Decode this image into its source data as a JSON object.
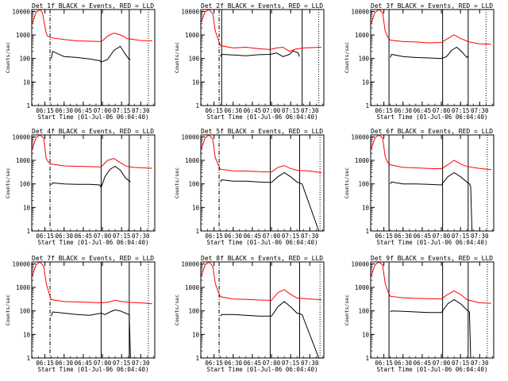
{
  "figure": {
    "background": "#ffffff",
    "axis_color": "#000000",
    "events_color": "#000000",
    "lld_color": "#ff0000"
  },
  "chart_data": [
    {
      "type": "line",
      "title": "Det 1f BLACK = Events, RED = LLD",
      "xlabel": "Start Time (01-Jul-06 06:04:40)",
      "ylabel": "Counts/sec",
      "yscale": "log",
      "ylim": [
        1,
        12000
      ],
      "y_ticks": [
        1,
        10,
        100,
        1000,
        10000
      ],
      "x_ticks": [
        "06:15",
        "06:30",
        "06:45",
        "07:00",
        "07:15",
        "07:30"
      ],
      "series": [
        {
          "role": "lld",
          "color": "#ff0000",
          "x": [
            "06:05",
            "06:08",
            "06:11",
            "06:13",
            "06:16",
            "06:17",
            "06:20",
            "06:30",
            "06:40",
            "06:50",
            "06:59",
            "07:00",
            "07:04",
            "07:09",
            "07:14",
            "07:18",
            "07:19",
            "07:30",
            "07:39"
          ],
          "y": [
            3000,
            9000,
            12000,
            9000,
            1200,
            900,
            750,
            640,
            560,
            540,
            520,
            560,
            900,
            1200,
            1000,
            800,
            700,
            580,
            560
          ]
        },
        {
          "role": "events",
          "color": "#000000",
          "x": [
            "06:20",
            "06:21",
            "06:30",
            "06:40",
            "06:50",
            "06:58",
            "06:59",
            "07:04",
            "07:09",
            "07:14",
            "07:17",
            "07:21",
            "07:22"
          ],
          "y": [
            100,
            200,
            120,
            110,
            95,
            80,
            70,
            90,
            220,
            330,
            180,
            90,
            95
          ]
        }
      ],
      "markers_solid": [
        "06:59",
        "07:21"
      ],
      "markers_dashed": [
        "06:19"
      ],
      "markers_dotted": [
        "07:36"
      ]
    },
    {
      "type": "line",
      "title": "Det 2f BLACK = Events, RED = LLD",
      "xlabel": "Start Time (01-Jul-06 06:04:40)",
      "ylabel": "Counts/sec",
      "yscale": "log",
      "ylim": [
        1,
        12000
      ],
      "y_ticks": [
        1,
        10,
        100,
        1000,
        10000
      ],
      "x_ticks": [
        "06:15",
        "06:30",
        "06:45",
        "07:00",
        "07:15",
        "07:30"
      ],
      "series": [
        {
          "role": "lld",
          "color": "#ff0000",
          "x": [
            "06:05",
            "06:08",
            "06:11",
            "06:14",
            "06:16",
            "06:18",
            "06:20",
            "06:30",
            "06:40",
            "06:50",
            "06:59",
            "07:04",
            "07:09",
            "07:14",
            "07:19",
            "07:25",
            "07:39"
          ],
          "y": [
            3500,
            9500,
            12000,
            8000,
            1500,
            700,
            350,
            280,
            300,
            260,
            240,
            280,
            300,
            200,
            250,
            280,
            300
          ]
        },
        {
          "role": "events",
          "color": "#000000",
          "x": [
            "06:20",
            "06:21",
            "06:30",
            "06:40",
            "06:50",
            "06:59",
            "07:04",
            "07:09",
            "07:14",
            "07:17",
            "07:21",
            "07:22"
          ],
          "y": [
            120,
            150,
            140,
            130,
            145,
            150,
            170,
            120,
            150,
            210,
            170,
            120
          ]
        }
      ],
      "markers_solid": [
        "06:21",
        "06:59",
        "07:24"
      ],
      "markers_dashed": [
        "06:19"
      ],
      "markers_dotted": [
        "07:37"
      ]
    },
    {
      "type": "line",
      "title": "Det 3f BLACK = Events, RED = LLD",
      "xlabel": "Start Time (01-Jul-06 06:04:40)",
      "ylabel": "Counts/sec",
      "yscale": "log",
      "ylim": [
        1,
        12000
      ],
      "y_ticks": [
        1,
        10,
        100,
        1000,
        10000
      ],
      "x_ticks": [
        "06:15",
        "06:30",
        "06:45",
        "07:00",
        "07:15",
        "07:30"
      ],
      "series": [
        {
          "role": "lld",
          "color": "#ff0000",
          "x": [
            "06:05",
            "06:08",
            "06:11",
            "06:14",
            "06:16",
            "06:18",
            "06:20",
            "06:30",
            "06:40",
            "06:50",
            "07:00",
            "07:05",
            "07:10",
            "07:15",
            "07:22",
            "07:30",
            "07:39"
          ],
          "y": [
            3000,
            9000,
            12000,
            9000,
            1500,
            800,
            600,
            520,
            500,
            460,
            480,
            700,
            1000,
            700,
            500,
            420,
            400
          ]
        },
        {
          "role": "events",
          "color": "#000000",
          "x": [
            "06:20",
            "06:21",
            "06:30",
            "06:40",
            "06:50",
            "07:00",
            "07:04",
            "07:08",
            "07:12",
            "07:15",
            "07:20",
            "07:21"
          ],
          "y": [
            110,
            150,
            120,
            110,
            105,
            100,
            120,
            220,
            300,
            220,
            110,
            130
          ]
        }
      ],
      "markers_solid": [
        "06:19",
        "07:01",
        "07:21"
      ],
      "markers_dashed": [],
      "markers_dotted": [
        "07:35"
      ]
    },
    {
      "type": "line",
      "title": "Det 4f BLACK = Events, RED = LLD",
      "xlabel": "Start Time (01-Jul-06 06:04:40)",
      "ylabel": "Counts/sec",
      "yscale": "log",
      "ylim": [
        1,
        12000
      ],
      "y_ticks": [
        1,
        10,
        100,
        1000,
        10000
      ],
      "x_ticks": [
        "06:15",
        "06:30",
        "06:45",
        "07:00",
        "07:15",
        "07:30"
      ],
      "series": [
        {
          "role": "lld",
          "color": "#ff0000",
          "x": [
            "06:05",
            "06:08",
            "06:11",
            "06:14",
            "06:16",
            "06:18",
            "06:20",
            "06:30",
            "06:40",
            "06:50",
            "06:59",
            "07:00",
            "07:04",
            "07:09",
            "07:14",
            "07:19",
            "07:25",
            "07:39"
          ],
          "y": [
            3000,
            9000,
            12000,
            9000,
            1200,
            800,
            700,
            580,
            560,
            540,
            520,
            600,
            1000,
            1200,
            800,
            550,
            500,
            460
          ]
        },
        {
          "role": "events",
          "color": "#000000",
          "x": [
            "06:20",
            "06:21",
            "06:30",
            "06:40",
            "06:50",
            "06:58",
            "06:59",
            "07:02",
            "07:06",
            "07:10",
            "07:14",
            "07:18",
            "07:22"
          ],
          "y": [
            90,
            110,
            100,
            95,
            95,
            90,
            70,
            200,
            420,
            560,
            380,
            180,
            120
          ]
        }
      ],
      "markers_solid": [
        "06:59",
        "07:21"
      ],
      "markers_dashed": [
        "06:19"
      ],
      "markers_dotted": [
        "07:36"
      ]
    },
    {
      "type": "line",
      "title": "Det 5f BLACK = Events, RED = LLD",
      "xlabel": "Start Time (01-Jul-06 06:04:40)",
      "ylabel": "Counts/sec",
      "yscale": "log",
      "ylim": [
        1,
        12000
      ],
      "y_ticks": [
        1,
        10,
        100,
        1000,
        10000
      ],
      "x_ticks": [
        "06:15",
        "06:30",
        "06:45",
        "07:00",
        "07:15",
        "07:30"
      ],
      "series": [
        {
          "role": "lld",
          "color": "#ff0000",
          "x": [
            "06:05",
            "06:08",
            "06:11",
            "06:14",
            "06:16",
            "06:18",
            "06:20",
            "06:30",
            "06:40",
            "06:50",
            "07:00",
            "07:05",
            "07:10",
            "07:15",
            "07:20",
            "07:30",
            "07:39"
          ],
          "y": [
            3000,
            9000,
            12000,
            8000,
            1300,
            700,
            420,
            360,
            350,
            330,
            320,
            500,
            600,
            450,
            380,
            350,
            300
          ]
        },
        {
          "role": "events",
          "color": "#000000",
          "x": [
            "06:20",
            "06:21",
            "06:30",
            "06:40",
            "06:50",
            "07:00",
            "07:05",
            "07:10",
            "07:15",
            "07:20",
            "07:24",
            "07:37",
            "07:38"
          ],
          "y": [
            120,
            150,
            130,
            130,
            120,
            115,
            200,
            300,
            200,
            120,
            100,
            1,
            1
          ]
        }
      ],
      "markers_solid": [
        "06:59",
        "07:22"
      ],
      "markers_dashed": [
        "06:19"
      ],
      "markers_dotted": [
        "07:38"
      ]
    },
    {
      "type": "line",
      "title": "Det 6f BLACK = Events, RED = LLD",
      "xlabel": "Start Time (01-Jul-06 06:04:40)",
      "ylabel": "Counts/sec",
      "yscale": "log",
      "ylim": [
        1,
        12000
      ],
      "y_ticks": [
        1,
        10,
        100,
        1000,
        10000
      ],
      "x_ticks": [
        "06:15",
        "06:30",
        "06:45",
        "07:00",
        "07:15",
        "07:30"
      ],
      "series": [
        {
          "role": "lld",
          "color": "#ff0000",
          "x": [
            "06:05",
            "06:08",
            "06:11",
            "06:14",
            "06:16",
            "06:18",
            "06:20",
            "06:30",
            "06:40",
            "06:50",
            "07:00",
            "07:05",
            "07:10",
            "07:15",
            "07:20",
            "07:30",
            "07:39"
          ],
          "y": [
            3000,
            9000,
            12000,
            9000,
            1500,
            800,
            650,
            500,
            480,
            450,
            440,
            650,
            1000,
            700,
            550,
            450,
            400
          ]
        },
        {
          "role": "events",
          "color": "#000000",
          "x": [
            "06:20",
            "06:21",
            "06:30",
            "06:40",
            "06:50",
            "07:00",
            "07:05",
            "07:10",
            "07:15",
            "07:20",
            "07:22",
            "07:23",
            "07:24",
            "07:25"
          ],
          "y": [
            100,
            120,
            100,
            100,
            95,
            90,
            200,
            300,
            200,
            120,
            100,
            80,
            1,
            1
          ]
        }
      ],
      "markers_solid": [
        "06:19",
        "07:01",
        "07:21"
      ],
      "markers_dashed": [],
      "markers_dotted": [
        "07:36"
      ]
    },
    {
      "type": "line",
      "title": "Det 7f BLACK = Events, RED = LLD",
      "xlabel": "Start Time (01-Jul-06 06:04:40)",
      "ylabel": "Counts/sec",
      "yscale": "log",
      "ylim": [
        1,
        12000
      ],
      "y_ticks": [
        1,
        10,
        100,
        1000,
        10000
      ],
      "x_ticks": [
        "06:15",
        "06:30",
        "06:45",
        "07:00",
        "07:15",
        "07:30"
      ],
      "series": [
        {
          "role": "lld",
          "color": "#ff0000",
          "x": [
            "06:05",
            "06:08",
            "06:11",
            "06:14",
            "06:16",
            "06:18",
            "06:20",
            "06:30",
            "06:40",
            "06:50",
            "07:00",
            "07:05",
            "07:10",
            "07:15",
            "07:20",
            "07:30",
            "07:39"
          ],
          "y": [
            3000,
            9000,
            12000,
            8000,
            1500,
            600,
            300,
            250,
            240,
            230,
            220,
            240,
            280,
            250,
            230,
            220,
            200
          ]
        },
        {
          "role": "events",
          "color": "#000000",
          "x": [
            "06:20",
            "06:21",
            "06:30",
            "06:40",
            "06:50",
            "06:59",
            "07:02",
            "07:06",
            "07:10",
            "07:14",
            "07:18",
            "07:21",
            "07:22"
          ],
          "y": [
            60,
            90,
            80,
            70,
            65,
            80,
            70,
            90,
            110,
            100,
            80,
            70,
            1
          ]
        }
      ],
      "markers_solid": [
        "06:59",
        "07:21"
      ],
      "markers_dashed": [
        "06:19"
      ],
      "markers_dotted": [
        "07:36"
      ]
    },
    {
      "type": "line",
      "title": "Det 8f BLACK = Events, RED = LLD",
      "xlabel": "Start Time (01-Jul-06 06:04:40)",
      "ylabel": "Counts/sec",
      "yscale": "log",
      "ylim": [
        1,
        12000
      ],
      "y_ticks": [
        1,
        10,
        100,
        1000,
        10000
      ],
      "x_ticks": [
        "06:15",
        "06:30",
        "06:45",
        "07:00",
        "07:15",
        "07:30"
      ],
      "series": [
        {
          "role": "lld",
          "color": "#ff0000",
          "x": [
            "06:05",
            "06:08",
            "06:11",
            "06:14",
            "06:16",
            "06:18",
            "06:20",
            "06:30",
            "06:40",
            "06:50",
            "07:00",
            "07:05",
            "07:10",
            "07:15",
            "07:20",
            "07:30",
            "07:39"
          ],
          "y": [
            3000,
            9000,
            12000,
            8000,
            1500,
            700,
            400,
            320,
            310,
            290,
            280,
            600,
            800,
            500,
            350,
            320,
            300
          ]
        },
        {
          "role": "events",
          "color": "#000000",
          "x": [
            "06:20",
            "06:21",
            "06:30",
            "06:40",
            "06:50",
            "07:00",
            "07:05",
            "07:10",
            "07:15",
            "07:20",
            "07:24",
            "07:37",
            "07:38"
          ],
          "y": [
            60,
            70,
            70,
            65,
            60,
            60,
            150,
            250,
            150,
            80,
            70,
            1,
            1
          ]
        }
      ],
      "markers_solid": [
        "06:59",
        "07:22"
      ],
      "markers_dashed": [
        "06:19"
      ],
      "markers_dotted": [
        "07:38"
      ]
    },
    {
      "type": "line",
      "title": "Det 9f BLACK = Events, RED = LLD",
      "xlabel": "Start Time (01-Jul-06 06:04:40)",
      "ylabel": "Counts/sec",
      "yscale": "log",
      "ylim": [
        1,
        12000
      ],
      "y_ticks": [
        1,
        10,
        100,
        1000,
        10000
      ],
      "x_ticks": [
        "06:15",
        "06:30",
        "06:45",
        "07:00",
        "07:15",
        "07:30"
      ],
      "series": [
        {
          "role": "lld",
          "color": "#ff0000",
          "x": [
            "06:05",
            "06:08",
            "06:11",
            "06:14",
            "06:16",
            "06:18",
            "06:20",
            "06:30",
            "06:40",
            "06:50",
            "07:00",
            "07:05",
            "07:10",
            "07:15",
            "07:20",
            "07:30",
            "07:39"
          ],
          "y": [
            3000,
            9000,
            12000,
            9000,
            1500,
            700,
            420,
            360,
            340,
            330,
            320,
            500,
            700,
            500,
            300,
            220,
            210
          ]
        },
        {
          "role": "events",
          "color": "#000000",
          "x": [
            "06:20",
            "06:21",
            "06:30",
            "06:40",
            "06:50",
            "07:00",
            "07:05",
            "07:10",
            "07:15",
            "07:20",
            "07:22",
            "07:23",
            "07:24"
          ],
          "y": [
            90,
            100,
            95,
            90,
            85,
            85,
            200,
            300,
            200,
            110,
            90,
            1,
            1
          ]
        }
      ],
      "markers_solid": [
        "06:19",
        "07:01",
        "07:21"
      ],
      "markers_dashed": [],
      "markers_dotted": [
        "07:36"
      ]
    }
  ]
}
